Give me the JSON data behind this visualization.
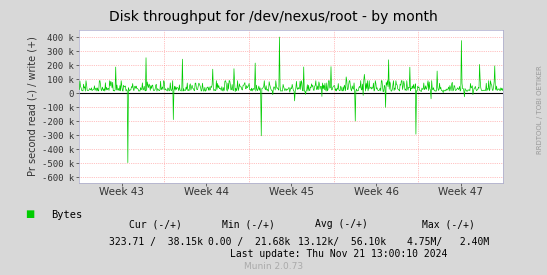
{
  "title": "Disk throughput for /dev/nexus/root - by month",
  "ylabel": "Pr second read (-) / write (+)",
  "background_color": "#d8d8d8",
  "plot_bg_color": "#ffffff",
  "grid_color": "#ff8888",
  "zero_line_color": "#000000",
  "line_color": "#00cc00",
  "ylim": [
    -640000,
    450000
  ],
  "yticks": [
    -600000,
    -500000,
    -400000,
    -300000,
    -200000,
    -100000,
    0,
    100000,
    200000,
    300000,
    400000
  ],
  "ytick_labels": [
    "-600 k",
    "-500 k",
    "-400 k",
    "-300 k",
    "-200 k",
    "-100 k",
    "0",
    "100 k",
    "200 k",
    "300 k",
    "400 k"
  ],
  "xtick_labels": [
    "Week 43",
    "Week 44",
    "Week 45",
    "Week 46",
    "Week 47"
  ],
  "legend_label": "Bytes",
  "legend_color": "#00cc00",
  "footer_cur": "Cur (-/+)",
  "footer_min": "Min (-/+)",
  "footer_avg": "Avg (-/+)",
  "footer_max": "Max (-/+)",
  "footer_cur_val": "323.71 /  38.15k",
  "footer_min_val": "0.00 /  21.68k",
  "footer_avg_val": "13.12k/  56.10k",
  "footer_max_val": "4.75M/   2.40M",
  "footer_lastupdate": "Last update: Thu Nov 21 13:00:10 2024",
  "munin_version": "Munin 2.0.73",
  "right_label": "RRDTOOL / TOBI OETIKER",
  "seed": 42,
  "n_points": 700
}
